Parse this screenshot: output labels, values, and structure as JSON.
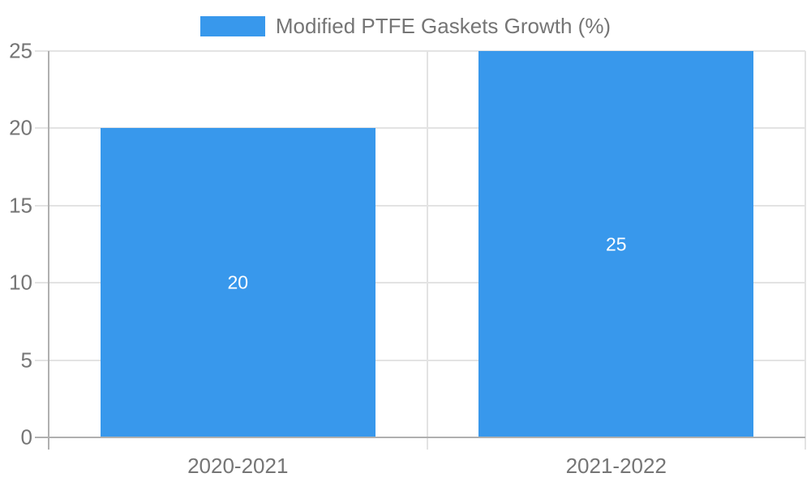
{
  "chart_data": {
    "type": "bar",
    "title": "",
    "categories": [
      "2020-2021",
      "2021-2022"
    ],
    "series": [
      {
        "name": "Modified PTFE Gaskets Growth (%)",
        "values": [
          20,
          25
        ]
      }
    ],
    "ylim": [
      0,
      25
    ],
    "yticks": [
      0,
      5,
      10,
      15,
      20,
      25
    ],
    "grid": true,
    "legend_position": "top-center",
    "colors": {
      "bar": "#3898EC",
      "label_text": "#757575",
      "gridline": "#E3E3E3",
      "axis_line": "#B0B0B0",
      "value_label": "#FFFFFF",
      "background": "#FFFFFF"
    }
  }
}
